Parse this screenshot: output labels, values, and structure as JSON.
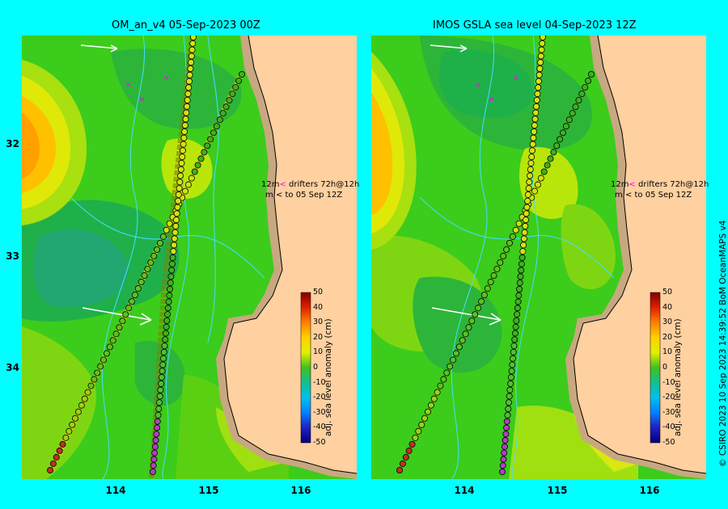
{
  "panels": [
    {
      "title": "OM_an_v4  05-Sep-2023 00Z"
    },
    {
      "title": "IMOS GSLA sea level  04-Sep-2023 12Z"
    }
  ],
  "axes": {
    "y_ticks": [
      "32",
      "33",
      "34"
    ],
    "x_ticks": [
      "114",
      "115",
      "116"
    ]
  },
  "annotations": {
    "line1_prefix": "12m",
    "line1_arrow": "<",
    "line1_text": "drifters 72h@12h",
    "line2_prefix": "m",
    "line2_arrow": "<",
    "line2_text": "to 05 Sep 12Z"
  },
  "colorbar": {
    "label": "adj. sea level anomaly (cm)",
    "ticks": [
      "50",
      "40",
      "30",
      "20",
      "10",
      "0",
      "-10",
      "-20",
      "-30",
      "-40",
      "-50"
    ]
  },
  "credit": "© CSIRO 2023   10 Sep 2023 14:39:52 BoM OceanMAPS v4",
  "colors": {
    "background": "#00ffff",
    "land": "#ffd0a0",
    "shelf": "#c8a880",
    "drifter_magenta": "#ff00ff"
  }
}
